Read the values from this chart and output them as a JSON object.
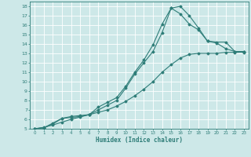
{
  "xlabel": "Humidex (Indice chaleur)",
  "bg_color": "#cde8e8",
  "grid_color": "#ffffff",
  "line_color": "#2e7d78",
  "xlim": [
    -0.5,
    23.5
  ],
  "ylim": [
    5,
    18.5
  ],
  "xticks": [
    0,
    1,
    2,
    3,
    4,
    5,
    6,
    7,
    8,
    9,
    10,
    11,
    12,
    13,
    14,
    15,
    16,
    17,
    18,
    19,
    20,
    21,
    22,
    23
  ],
  "yticks": [
    5,
    6,
    7,
    8,
    9,
    10,
    11,
    12,
    13,
    14,
    15,
    16,
    17,
    18
  ],
  "curve1_x": [
    0,
    1,
    2,
    3,
    4,
    5,
    6,
    7,
    8,
    9,
    10,
    11,
    12,
    13,
    14,
    15,
    16,
    17,
    18,
    19,
    20,
    21,
    22,
    23
  ],
  "curve1_y": [
    5.0,
    5.1,
    5.6,
    6.1,
    6.3,
    6.4,
    6.5,
    7.3,
    7.8,
    8.3,
    9.5,
    11.0,
    12.3,
    13.9,
    16.1,
    17.8,
    18.0,
    17.0,
    15.7,
    14.3,
    14.2,
    14.2,
    13.2,
    13.2
  ],
  "curve2_x": [
    0,
    1,
    2,
    3,
    4,
    5,
    6,
    7,
    8,
    9,
    10,
    11,
    12,
    13,
    14,
    15,
    16,
    17,
    18,
    19,
    20,
    21,
    22,
    23
  ],
  "curve2_y": [
    5.0,
    5.1,
    5.5,
    6.1,
    6.2,
    6.3,
    6.5,
    7.0,
    7.5,
    8.0,
    9.3,
    10.8,
    12.0,
    13.2,
    15.2,
    17.8,
    17.2,
    16.1,
    15.5,
    14.3,
    14.1,
    13.5,
    13.2,
    13.1
  ],
  "curve3_x": [
    0,
    1,
    2,
    3,
    4,
    5,
    6,
    7,
    8,
    9,
    10,
    11,
    12,
    13,
    14,
    15,
    16,
    17,
    18,
    19,
    20,
    21,
    22,
    23
  ],
  "curve3_y": [
    5.0,
    5.15,
    5.4,
    5.7,
    6.0,
    6.25,
    6.5,
    6.75,
    7.0,
    7.4,
    7.9,
    8.5,
    9.2,
    10.0,
    11.0,
    11.8,
    12.5,
    12.9,
    13.0,
    13.0,
    13.0,
    13.1,
    13.1,
    13.15
  ]
}
